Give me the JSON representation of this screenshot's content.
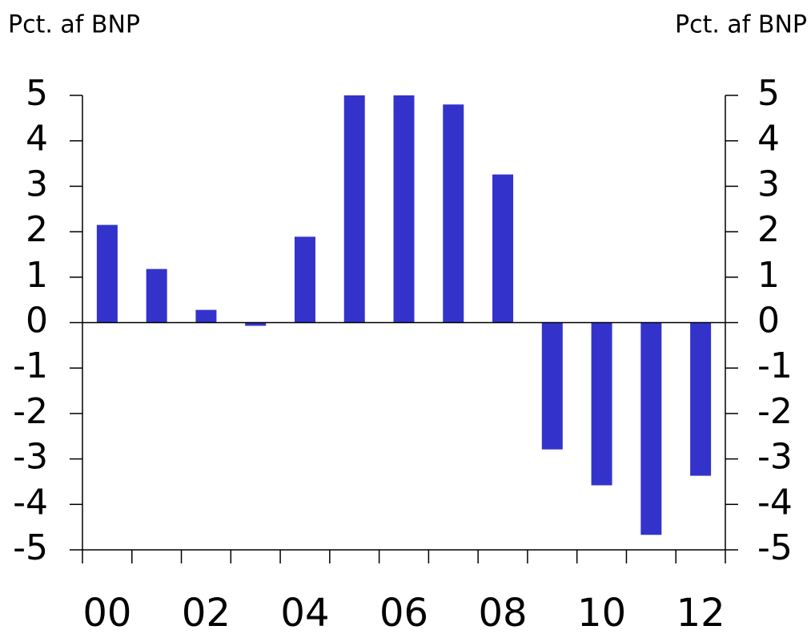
{
  "chart_data": {
    "type": "bar",
    "ylabel": "Pct. af BNP",
    "y2label": "Pct. af BNP",
    "categories": [
      "00",
      null,
      "02",
      null,
      "04",
      null,
      "06",
      null,
      "08",
      null,
      "10",
      null,
      "12"
    ],
    "values": [
      2.15,
      1.18,
      0.28,
      -0.07,
      1.89,
      5.0,
      5.0,
      4.8,
      3.26,
      -2.79,
      -3.58,
      -4.67,
      -3.37
    ],
    "color": "#3333cc",
    "ylim": [
      -5,
      5
    ],
    "yticks": [
      -5,
      -4,
      -3,
      -2,
      -1,
      0,
      1,
      2,
      3,
      4,
      5
    ],
    "y2lim": [
      -5,
      5
    ],
    "y2ticks": [
      -5,
      -4,
      -3,
      -2,
      -1,
      0,
      1,
      2,
      3,
      4,
      5
    ],
    "grid": false
  }
}
